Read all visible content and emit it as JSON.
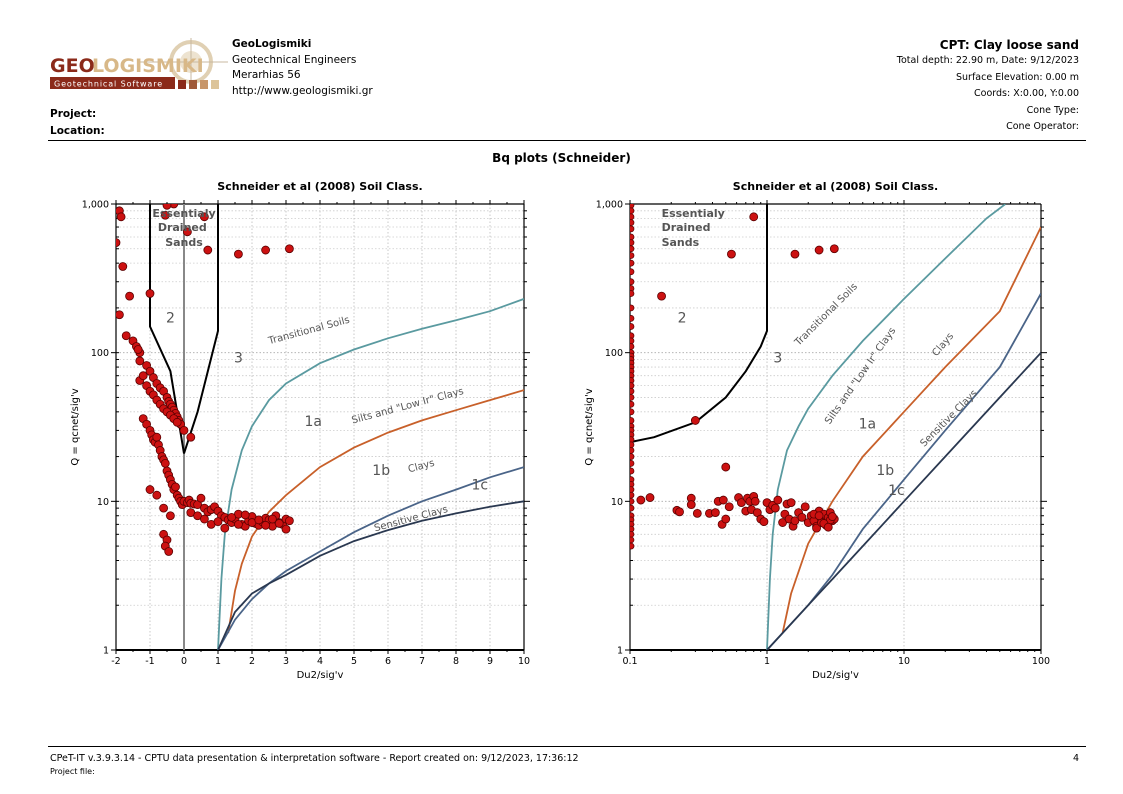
{
  "header": {
    "logo_text": "GEOLOGISMIKI",
    "logo_sub": "Geotechnical Software",
    "company_name": "GeoLogismiki",
    "company_line2": "Geotechnical Engineers",
    "company_line3": "Merarhias 56",
    "company_url": "http://www.geologismiki.gr",
    "project_label": "Project:",
    "location_label": "Location:",
    "cpt_title": "CPT: Clay loose sand",
    "total_depth": "Total depth: 22.90 m, Date: 9/12/2023",
    "surface_elevation": "Surface Elevation: 0.00 m",
    "coords": "Coords: X:0.00, Y:0.00",
    "cone_type": "Cone Type:",
    "cone_operator": "Cone Operator:"
  },
  "page_title": "Bq plots (Schneider)",
  "footer": {
    "software": "CPeT-IT v.3.9.3.14 - CPTU data presentation & interpretation software - Report created on: 9/12/2023, 17:36:12",
    "project_file": "Project file:",
    "page_number": "4"
  },
  "colors": {
    "points": "#cc1111",
    "transitional": "#5a9aa0",
    "silts": "#c8602a",
    "clays": "#4a6488",
    "sensitive": "#2a3850",
    "boundary": "#000000",
    "zero_line": "#888888"
  },
  "chart_data": [
    {
      "type": "scatter",
      "title": "Schneider et al (2008) Soil Class.",
      "xlabel": "Du2/sig'v",
      "ylabel": "Q = qcnet/sig'v",
      "xscale": "linear",
      "yscale": "log",
      "xlim": [
        -2,
        10
      ],
      "ylim": [
        1,
        1000
      ],
      "xticks": [
        "-2",
        "-1",
        "0",
        "1",
        "2",
        "3",
        "4",
        "5",
        "6",
        "7",
        "8",
        "9",
        "10"
      ],
      "yticks": [
        "1",
        "10",
        "100",
        "1,000"
      ],
      "grid": true,
      "zone_labels": [
        {
          "text": "Essentialy",
          "x": 0.0,
          "y": 820
        },
        {
          "text": "Drained",
          "x": -0.05,
          "y": 660
        },
        {
          "text": "Sands",
          "x": 0.0,
          "y": 520
        },
        {
          "text": "2",
          "x": -0.4,
          "y": 160
        },
        {
          "text": "3",
          "x": 1.6,
          "y": 86
        },
        {
          "text": "1a",
          "x": 3.8,
          "y": 32
        },
        {
          "text": "1b",
          "x": 5.8,
          "y": 15
        },
        {
          "text": "1c",
          "x": 8.7,
          "y": 12
        }
      ],
      "curve_labels": [
        {
          "text": "Transitional Soils",
          "x": 3.7,
          "y": 135,
          "angle": -15
        },
        {
          "text": "Silts and \"Low Ir\" Clays",
          "x": 6.6,
          "y": 42,
          "angle": -15
        },
        {
          "text": "Clays",
          "x": 7.0,
          "y": 16.5,
          "angle": -15
        },
        {
          "text": "Sensitive Clays",
          "x": 6.7,
          "y": 7.3,
          "angle": -15
        }
      ],
      "series": [
        {
          "name": "Transitional Soils",
          "x": [
            1,
            1.1,
            1.2,
            1.4,
            1.7,
            2,
            2.5,
            3,
            4,
            5,
            6,
            7,
            8,
            9,
            10
          ],
          "y": [
            1,
            3,
            6,
            12,
            22,
            32,
            48,
            62,
            85,
            105,
            125,
            145,
            165,
            190,
            230
          ]
        },
        {
          "name": "Silts and Low Ir Clays",
          "x": [
            1.3,
            1.5,
            1.7,
            2,
            2.5,
            3,
            4,
            5,
            6,
            7,
            8,
            9,
            10
          ],
          "y": [
            1.3,
            2.5,
            3.8,
            5.8,
            8.5,
            11,
            17,
            23,
            29,
            35,
            41,
            48,
            56
          ]
        },
        {
          "name": "Clays",
          "x": [
            1,
            1.5,
            2,
            2.5,
            3,
            4,
            5,
            6,
            7,
            8,
            9,
            10
          ],
          "y": [
            1,
            1.6,
            2.2,
            2.8,
            3.4,
            4.6,
            6.2,
            8,
            10,
            12,
            14.5,
            17
          ]
        },
        {
          "name": "Sensitive Clays",
          "x": [
            1,
            1.5,
            2,
            2.5,
            3,
            4,
            5,
            6,
            7,
            8,
            9,
            10
          ],
          "y": [
            1,
            1.8,
            2.4,
            2.8,
            3.2,
            4.3,
            5.4,
            6.4,
            7.4,
            8.3,
            9.2,
            10
          ]
        },
        {
          "name": "Zone 2 boundary",
          "x": [
            -1,
            -1,
            -0.4,
            0,
            0.4,
            1,
            1,
            1
          ],
          "y": [
            1000,
            150,
            75,
            21,
            40,
            140,
            1000,
            1000
          ]
        }
      ],
      "points": {
        "x": [
          -1.9,
          -1.85,
          -1.8,
          -2.0,
          -1.9,
          -1.6,
          -1.3,
          -1.0,
          -0.3,
          -0.5,
          -0.55,
          0.1,
          0.6,
          0.7,
          1.6,
          2.4,
          3.1,
          -1.7,
          -1.5,
          -1.4,
          -1.35,
          -1.3,
          -1.1,
          -1.0,
          -0.9,
          -0.8,
          -0.7,
          -0.6,
          -0.5,
          -0.45,
          -0.4,
          -0.35,
          -0.3,
          -0.25,
          -0.2,
          -0.15,
          -0.1,
          0.0,
          0.2,
          -1.3,
          -1.2,
          -1.1,
          -1.0,
          -0.9,
          -0.8,
          -0.7,
          -0.6,
          -0.5,
          -0.4,
          -0.3,
          -0.2,
          -1.2,
          -1.1,
          -1.0,
          -0.95,
          -0.9,
          -0.85,
          -0.8,
          -0.75,
          -0.7,
          -0.65,
          -0.6,
          -0.55,
          -0.5,
          -0.45,
          -0.4,
          -0.35,
          -0.3,
          -0.25,
          -0.2,
          -0.15,
          -0.1,
          -0.05,
          0.0,
          0.1,
          0.15,
          0.2,
          0.3,
          0.4,
          0.5,
          0.6,
          0.7,
          0.8,
          0.9,
          1.0,
          1.1,
          1.2,
          1.3,
          1.4,
          1.5,
          1.6,
          1.7,
          1.8,
          1.9,
          2.0,
          2.1,
          2.2,
          2.3,
          2.4,
          2.5,
          2.6,
          2.7,
          2.8,
          2.9,
          3.0,
          3.1,
          0.2,
          0.4,
          0.6,
          0.8,
          1.0,
          1.2,
          1.4,
          1.6,
          1.8,
          2.0,
          2.2,
          2.4,
          2.6,
          2.8,
          3.0,
          -0.6,
          -0.5,
          -0.55,
          -0.45,
          -1.0,
          -0.8,
          -0.6,
          -0.4
        ],
        "y": [
          900,
          820,
          380,
          550,
          180,
          240,
          100,
          250,
          1000,
          980,
          840,
          650,
          820,
          490,
          460,
          490,
          500,
          130,
          120,
          110,
          105,
          88,
          82,
          75,
          68,
          62,
          58,
          55,
          50,
          47,
          45,
          43,
          41,
          39,
          37,
          35,
          33,
          30,
          27,
          65,
          70,
          60,
          55,
          52,
          48,
          45,
          42,
          40,
          38,
          36,
          34,
          36,
          33,
          30,
          28,
          26,
          25,
          27,
          24,
          22,
          20,
          19,
          18,
          16,
          15,
          14,
          13,
          12,
          12.5,
          11,
          10.5,
          10,
          9.5,
          10,
          9.8,
          10.2,
          9.7,
          9.6,
          9.5,
          10.5,
          9.0,
          8.5,
          8.8,
          9.2,
          8.6,
          8.0,
          7.8,
          7.5,
          7.2,
          7.6,
          8.2,
          7.0,
          6.8,
          7.4,
          7.9,
          7.1,
          6.9,
          7.3,
          7.7,
          7.5,
          6.8,
          8.0,
          7.2,
          7.0,
          7.6,
          7.4,
          8.4,
          8.0,
          7.6,
          7.0,
          7.3,
          6.6,
          7.8,
          7.0,
          8.1,
          7.2,
          7.5,
          6.9,
          7.6,
          7.1,
          6.5,
          6.0,
          5.5,
          5.0,
          4.6,
          12,
          11,
          9,
          8
        ]
      }
    },
    {
      "type": "scatter",
      "title": "Schneider et al (2008) Soil Class.",
      "xlabel": "Du2/sig'v",
      "ylabel": "Q = qcnet/sig'v",
      "xscale": "log",
      "yscale": "log",
      "xlim": [
        0.1,
        100
      ],
      "ylim": [
        1,
        1000
      ],
      "xticks": [
        "0.1",
        "1",
        "10",
        "100"
      ],
      "yticks": [
        "1",
        "10",
        "100",
        "1,000"
      ],
      "grid": true,
      "zone_labels": [
        {
          "text": "Essentialy",
          "x": 0.17,
          "y": 820
        },
        {
          "text": "Drained",
          "x": 0.17,
          "y": 660
        },
        {
          "text": "Sands",
          "x": 0.17,
          "y": 520
        },
        {
          "text": "2",
          "x": 0.24,
          "y": 160
        },
        {
          "text": "3",
          "x": 1.2,
          "y": 86
        },
        {
          "text": "1a",
          "x": 5.4,
          "y": 31
        },
        {
          "text": "1b",
          "x": 7.3,
          "y": 15
        },
        {
          "text": "1c",
          "x": 8.8,
          "y": 11
        }
      ],
      "curve_labels": [
        {
          "text": "Transitional Soils",
          "x": 2.8,
          "y": 175,
          "angle": -45
        },
        {
          "text": "Silts and \"Low Ir\" Clays",
          "x": 5.0,
          "y": 68,
          "angle": -55
        },
        {
          "text": "Clays",
          "x": 20,
          "y": 110,
          "angle": -50
        },
        {
          "text": "Sensitive Clays",
          "x": 22,
          "y": 35,
          "angle": -45
        }
      ],
      "series": [
        {
          "name": "Transitional Soils",
          "x": [
            1,
            1.05,
            1.1,
            1.2,
            1.4,
            1.7,
            2,
            3,
            5,
            10,
            20,
            40,
            55
          ],
          "y": [
            1,
            3,
            6,
            12,
            22,
            32,
            42,
            70,
            120,
            230,
            430,
            800,
            1000
          ]
        },
        {
          "name": "Silts and Low Ir Clays",
          "x": [
            1.3,
            1.5,
            2,
            3,
            5,
            10,
            20,
            50,
            100
          ],
          "y": [
            1.3,
            2.4,
            5.2,
            10,
            20,
            40,
            80,
            190,
            700
          ]
        },
        {
          "name": "Clays",
          "x": [
            1,
            2,
            3,
            5,
            10,
            20,
            50,
            100
          ],
          "y": [
            1,
            2,
            3.2,
            6.5,
            14,
            30,
            80,
            250
          ]
        },
        {
          "name": "Sensitive Clays",
          "x": [
            1,
            2,
            3,
            5,
            10,
            20,
            50,
            100
          ],
          "y": [
            1,
            2,
            3,
            5,
            10,
            20,
            50,
            100
          ]
        },
        {
          "name": "Zone 2 boundary",
          "x": [
            0.1,
            0.15,
            0.3,
            0.5,
            0.7,
            0.9,
            1,
            1
          ],
          "y": [
            25,
            27,
            34,
            50,
            75,
            110,
            140,
            1000
          ]
        }
      ],
      "points": {
        "x": [
          0.12,
          0.14,
          0.17,
          0.3,
          0.5,
          0.55,
          0.8,
          1.6,
          2.4,
          3.1,
          0.22,
          0.23,
          0.28,
          0.28,
          0.31,
          0.38,
          0.42,
          0.44,
          0.47,
          0.48,
          0.5,
          0.53,
          0.62,
          0.65,
          0.7,
          0.72,
          0.75,
          0.77,
          0.8,
          0.82,
          0.85,
          0.9,
          0.95,
          1.0,
          1.05,
          1.1,
          1.15,
          1.2,
          1.3,
          1.35,
          1.4,
          1.45,
          1.5,
          1.55,
          1.6,
          1.7,
          1.8,
          1.9,
          2.0,
          2.1,
          2.2,
          2.3,
          2.4,
          2.5,
          2.6,
          2.7,
          2.8,
          2.9,
          3.0,
          3.1,
          2.3,
          2.5,
          2.7,
          2.9,
          2.2,
          2.4,
          2.6,
          2.8,
          3.0
        ],
        "y": [
          10.2,
          10.6,
          240,
          35,
          17,
          460,
          820,
          460,
          490,
          500,
          8.7,
          8.5,
          10.5,
          9.5,
          8.3,
          8.3,
          8.4,
          10.0,
          7.0,
          10.2,
          7.6,
          9.2,
          10.6,
          9.8,
          8.6,
          10.5,
          10.0,
          8.8,
          10.8,
          10.0,
          8.4,
          7.6,
          7.3,
          9.8,
          8.8,
          9.4,
          9.0,
          10.2,
          7.2,
          8.2,
          9.6,
          7.6,
          9.8,
          6.8,
          7.4,
          8.4,
          7.8,
          9.2,
          7.2,
          8.0,
          7.4,
          6.8,
          8.6,
          7.6,
          8.2,
          7.0,
          7.8,
          8.4,
          7.4,
          7.6,
          6.6,
          7.2,
          6.9,
          7.5,
          8.2,
          8.0,
          7.1,
          6.7,
          7.9
        ]
      },
      "axis_points_q": [
        980,
        900,
        820,
        750,
        680,
        600,
        550,
        500,
        450,
        400,
        350,
        300,
        270,
        250,
        200,
        170,
        150,
        130,
        120,
        110,
        100,
        95,
        90,
        85,
        80,
        75,
        70,
        65,
        60,
        55,
        50,
        45,
        40,
        35,
        32,
        30,
        28,
        26,
        24,
        22,
        20,
        18,
        16,
        14,
        13,
        12,
        11,
        10,
        9,
        8,
        7.5,
        7,
        6.5,
        6,
        5.5,
        5
      ]
    }
  ]
}
